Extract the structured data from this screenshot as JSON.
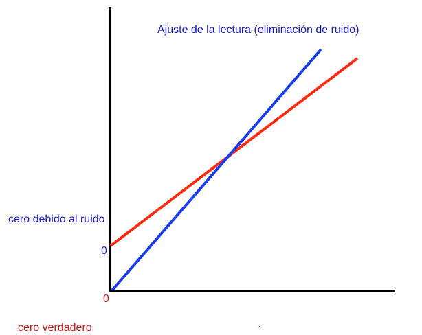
{
  "title": "Ajuste de la lectura (eliminación de ruido)",
  "noise_zero": {
    "label": "cero debido al ruido",
    "tick": "0"
  },
  "true_zero": {
    "label": "cero verdadero",
    "tick": "0"
  }
}
